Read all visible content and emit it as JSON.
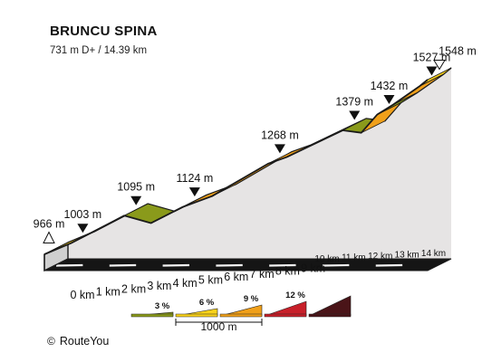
{
  "header": {
    "title": "BRUNCU SPINA",
    "stats": "731 m D+ / 14.39 km"
  },
  "chart_data": {
    "type": "area",
    "title": "BRUNCU SPINA",
    "subtitle": "731 m D+ / 14.39 km",
    "x_unit": "km",
    "y_unit": "m",
    "distance_km": 14.39,
    "elevation_gain_m": 731,
    "x_ticks": [
      0,
      1,
      2,
      3,
      4,
      5,
      6,
      7,
      8,
      9,
      10,
      11,
      12,
      13,
      14
    ],
    "profile": [
      {
        "km": 0,
        "m": 966
      },
      {
        "km": 1,
        "m": 1003
      },
      {
        "km": 3,
        "m": 1095
      },
      {
        "km": 4,
        "m": 1070
      },
      {
        "km": 5.2,
        "m": 1124
      },
      {
        "km": 6.3,
        "m": 1160
      },
      {
        "km": 8.4,
        "m": 1268
      },
      {
        "km": 9.1,
        "m": 1290
      },
      {
        "km": 11.2,
        "m": 1379
      },
      {
        "km": 11.9,
        "m": 1371
      },
      {
        "km": 12.5,
        "m": 1432
      },
      {
        "km": 13.1,
        "m": 1465
      },
      {
        "km": 14.1,
        "m": 1527
      },
      {
        "km": 14.39,
        "m": 1548
      }
    ],
    "segment_colors": [
      "yellow",
      "yellow",
      "olive",
      "yellow",
      "orange",
      "orange",
      "orange",
      "yellow",
      "olive",
      "orange",
      "olive",
      "orange",
      "yellow"
    ],
    "markers": [
      {
        "km": 0,
        "m": 966,
        "label": "966 m",
        "kind": "start"
      },
      {
        "km": 1,
        "m": 1003,
        "label": "1003 m",
        "kind": "peak"
      },
      {
        "km": 3,
        "m": 1095,
        "label": "1095 m",
        "kind": "peak"
      },
      {
        "km": 5.2,
        "m": 1124,
        "label": "1124 m",
        "kind": "peak"
      },
      {
        "km": 8.4,
        "m": 1268,
        "label": "1268 m",
        "kind": "peak"
      },
      {
        "km": 11.2,
        "m": 1379,
        "label": "1379 m",
        "kind": "peak"
      },
      {
        "km": 12.5,
        "m": 1432,
        "label": "1432 m",
        "kind": "peak"
      },
      {
        "km": 14.1,
        "m": 1527,
        "label": "1527 m",
        "kind": "peak"
      },
      {
        "km": 14.39,
        "m": 1548,
        "label": "1548 m",
        "kind": "end"
      }
    ],
    "legend": {
      "items": [
        {
          "label": "3 %",
          "color": "#8a9a1b"
        },
        {
          "label": "6 %",
          "color": "#f9d21a"
        },
        {
          "label": "9 %",
          "color": "#f0a01a"
        },
        {
          "label": "12 %",
          "color": "#c8202a"
        },
        {
          "label": "",
          "color": "#4a1418"
        }
      ],
      "scale_label": "1000 m"
    },
    "colors": {
      "olive": "#8a9a1b",
      "yellow": "#f9d21a",
      "orange": "#f0a01a",
      "wall": "#e6e4e4",
      "outline": "#1a1a1a"
    }
  },
  "credit": {
    "symbol": "©",
    "text": "RouteYou"
  }
}
